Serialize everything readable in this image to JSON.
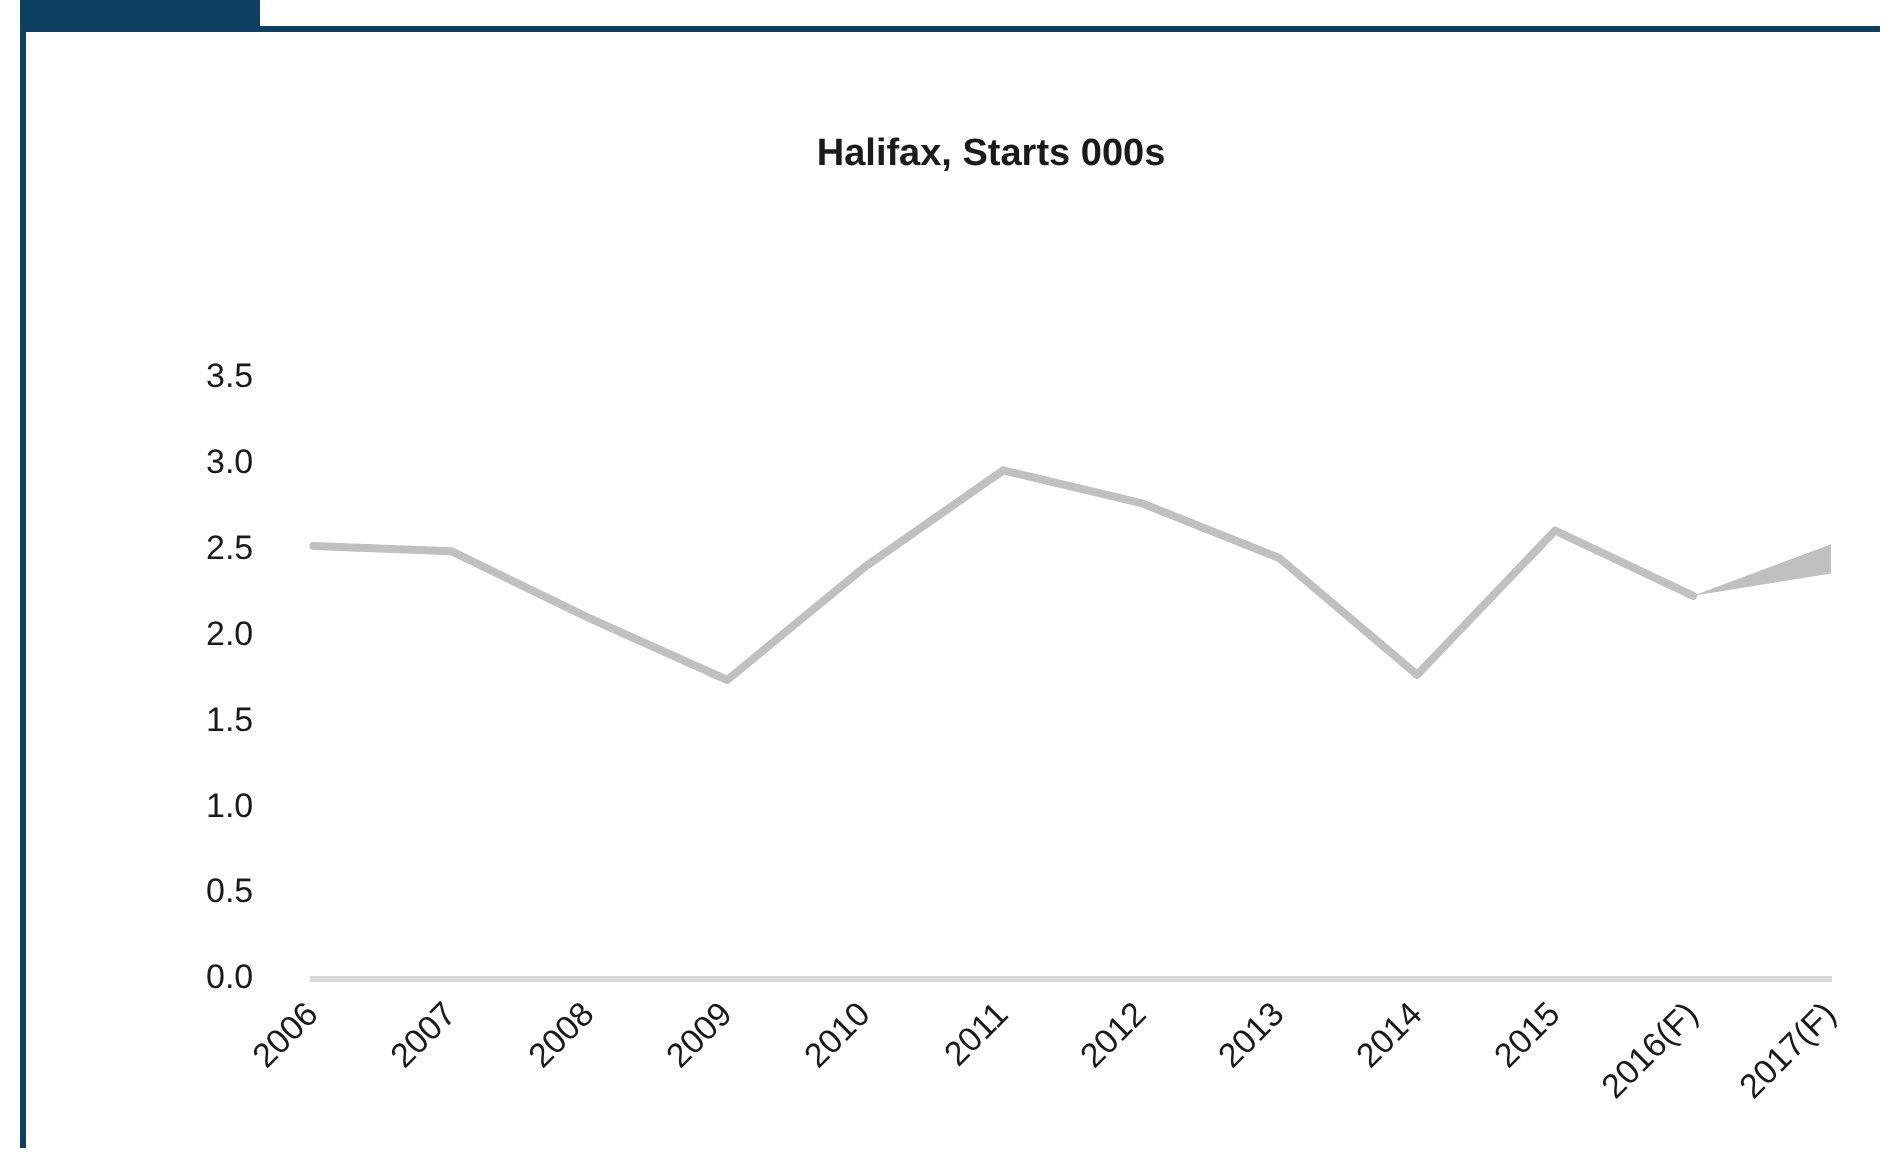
{
  "chart_data": {
    "type": "line",
    "title": "Halifax, Starts 000s",
    "categories": [
      "2006",
      "2007",
      "2008",
      "2009",
      "2010",
      "2011",
      "2012",
      "2013",
      "2014",
      "2015",
      "2016(F)",
      "2017(F)"
    ],
    "series": [
      {
        "color": "#c0c0c0",
        "values": [
          2.52,
          2.49,
          2.1,
          1.74,
          2.4,
          2.96,
          2.77,
          2.45,
          1.77,
          2.61,
          2.23,
          null
        ],
        "lower": [
          null,
          null,
          null,
          null,
          null,
          null,
          null,
          null,
          null,
          null,
          2.23,
          2.36
        ],
        "upper": [
          null,
          null,
          null,
          null,
          null,
          null,
          null,
          null,
          null,
          null,
          2.23,
          2.53
        ]
      }
    ],
    "ylim": [
      0,
      3.5
    ],
    "yticks": [
      {
        "value": 0,
        "label": "0.0"
      },
      {
        "value": 0.5,
        "label": "0.5"
      },
      {
        "value": 1,
        "label": "1.0"
      },
      {
        "value": 1.5,
        "label": "1.5"
      },
      {
        "value": 2,
        "label": "2.0"
      },
      {
        "value": 2.5,
        "label": "2.5"
      },
      {
        "value": 3,
        "label": "3.0"
      },
      {
        "value": 3.5,
        "label": "3.5"
      }
    ],
    "grid": false,
    "legend": false,
    "marker": "none",
    "line_style": "solid"
  }
}
